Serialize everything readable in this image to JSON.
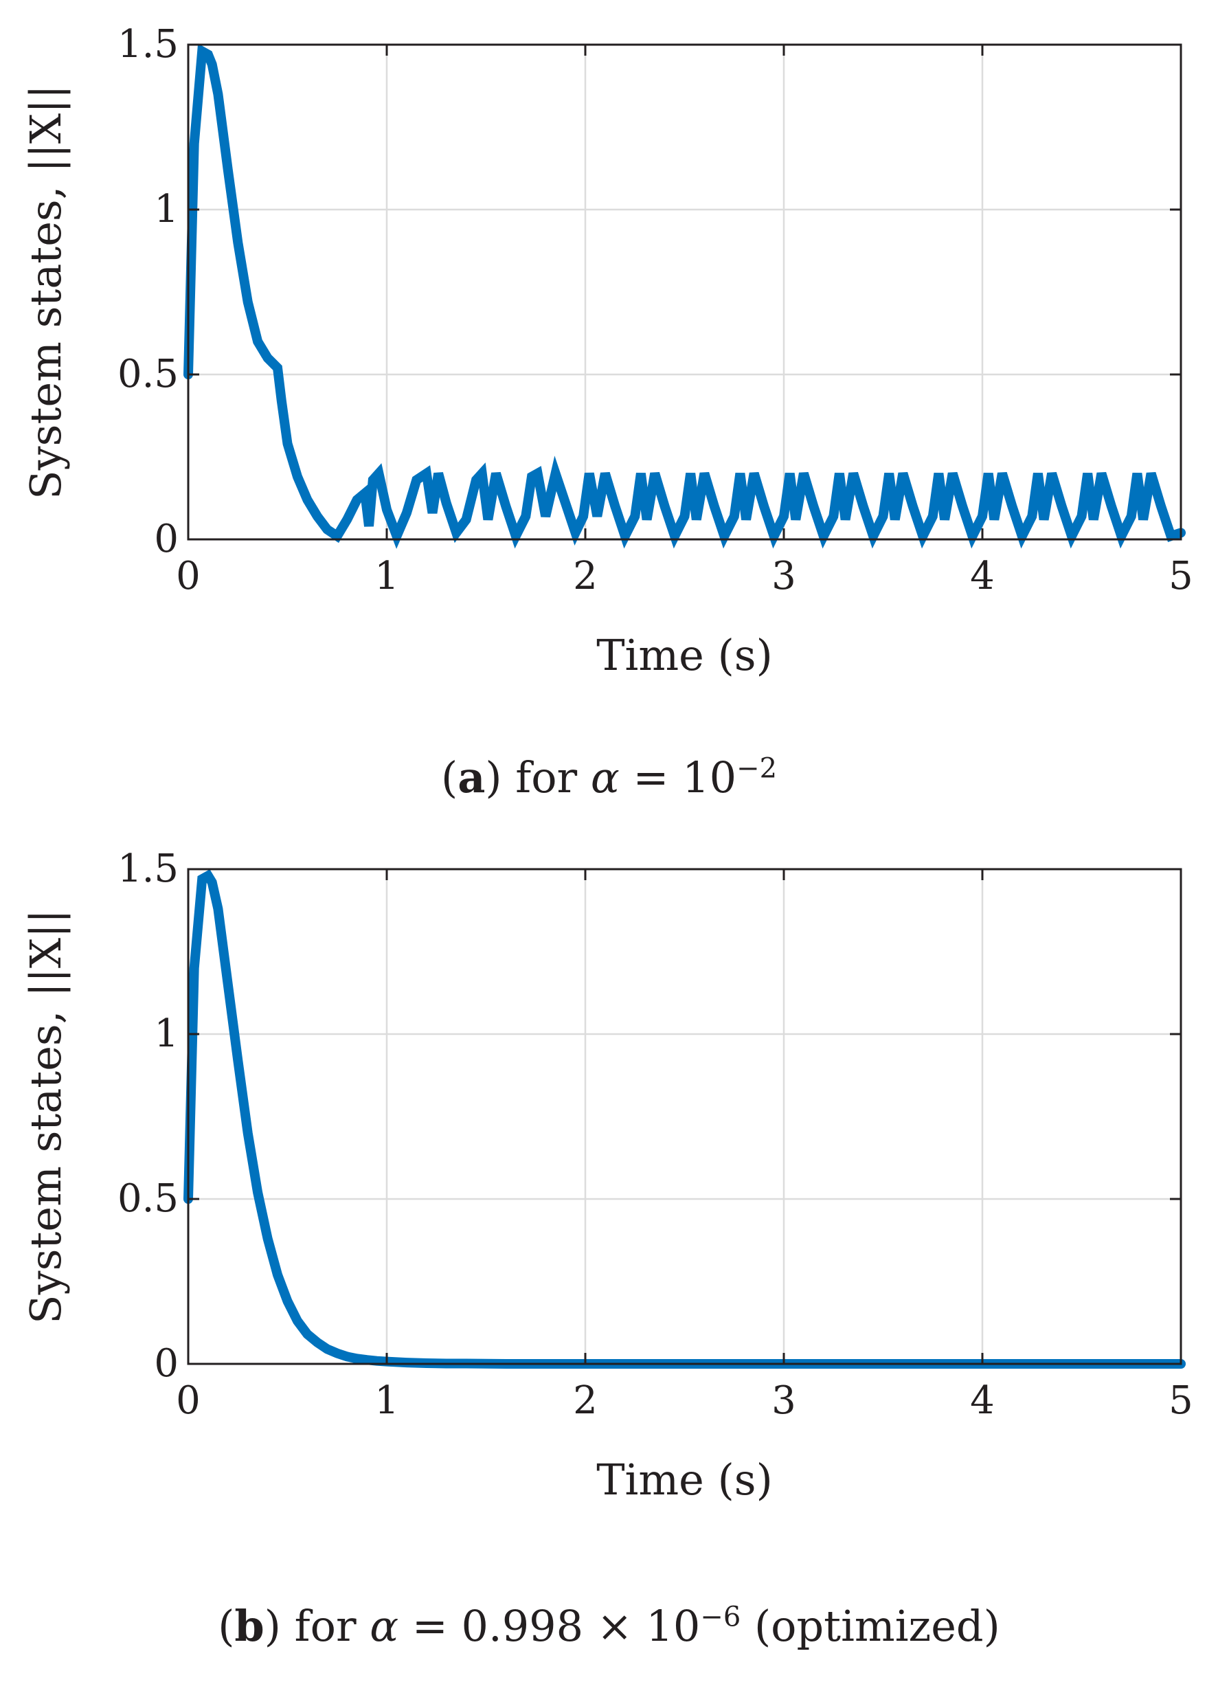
{
  "panels": [
    {
      "caption": {
        "letter": "a",
        "pre": " for ",
        "alpha_sym": "α",
        "eq": " = 10",
        "exp": "−2",
        "post": ""
      },
      "chart": {
        "type": "line",
        "xlabel": "Time (s)",
        "ylabel": "System states, ||X||",
        "xlim": [
          0,
          5
        ],
        "ylim": [
          0,
          1.5
        ],
        "xticks": [
          "0",
          "1",
          "2",
          "3",
          "4",
          "5"
        ],
        "yticks": [
          "0",
          "0.5",
          "1",
          "1.5"
        ],
        "grid": true,
        "line_color": "#0072bd",
        "series": [
          {
            "x": [
              0,
              0.03,
              0.07,
              0.1,
              0.12,
              0.15,
              0.2,
              0.25,
              0.3,
              0.35,
              0.4,
              0.45,
              0.47,
              0.5,
              0.55,
              0.6,
              0.65,
              0.7,
              0.75,
              0.8,
              0.85,
              0.89,
              0.91,
              0.93,
              0.96,
              1.0,
              1.05,
              1.1,
              1.15,
              1.2,
              1.23,
              1.26,
              1.3,
              1.35,
              1.4,
              1.45,
              1.48,
              1.51,
              1.55,
              1.6,
              1.65,
              1.7,
              1.73,
              1.76,
              1.8,
              1.85,
              1.9,
              1.95,
              1.99,
              2.02,
              2.06,
              2.1,
              2.15,
              2.2,
              2.25,
              2.28,
              2.31,
              2.35,
              2.4,
              2.45,
              2.5,
              2.53,
              2.56,
              2.6,
              2.65,
              2.7,
              2.75,
              2.78,
              2.81,
              2.85,
              2.9,
              2.95,
              3.0,
              3.03,
              3.06,
              3.1,
              3.15,
              3.2,
              3.25,
              3.28,
              3.31,
              3.35,
              3.4,
              3.45,
              3.5,
              3.53,
              3.56,
              3.6,
              3.65,
              3.7,
              3.75,
              3.78,
              3.81,
              3.85,
              3.9,
              3.95,
              4.0,
              4.03,
              4.06,
              4.1,
              4.15,
              4.2,
              4.25,
              4.28,
              4.31,
              4.35,
              4.4,
              4.45,
              4.5,
              4.53,
              4.56,
              4.6,
              4.65,
              4.7,
              4.75,
              4.78,
              4.81,
              4.85,
              4.9,
              4.95,
              5.0
            ],
            "y": [
              0.5,
              1.2,
              1.48,
              1.47,
              1.44,
              1.35,
              1.12,
              0.9,
              0.72,
              0.6,
              0.55,
              0.52,
              0.42,
              0.29,
              0.19,
              0.12,
              0.07,
              0.03,
              0.01,
              0.06,
              0.12,
              0.14,
              0.04,
              0.18,
              0.2,
              0.09,
              0.01,
              0.08,
              0.18,
              0.2,
              0.08,
              0.2,
              0.11,
              0.02,
              0.06,
              0.18,
              0.2,
              0.06,
              0.2,
              0.1,
              0.01,
              0.07,
              0.19,
              0.2,
              0.07,
              0.2,
              0.11,
              0.02,
              0.07,
              0.2,
              0.07,
              0.2,
              0.1,
              0.01,
              0.07,
              0.2,
              0.06,
              0.2,
              0.1,
              0.01,
              0.07,
              0.2,
              0.06,
              0.2,
              0.1,
              0.01,
              0.07,
              0.2,
              0.06,
              0.2,
              0.1,
              0.01,
              0.07,
              0.2,
              0.06,
              0.2,
              0.1,
              0.01,
              0.07,
              0.2,
              0.06,
              0.2,
              0.1,
              0.01,
              0.07,
              0.2,
              0.06,
              0.2,
              0.1,
              0.01,
              0.07,
              0.2,
              0.06,
              0.2,
              0.1,
              0.01,
              0.07,
              0.2,
              0.06,
              0.2,
              0.1,
              0.01,
              0.07,
              0.2,
              0.06,
              0.2,
              0.1,
              0.01,
              0.07,
              0.2,
              0.06,
              0.2,
              0.1,
              0.01,
              0.07,
              0.2,
              0.06,
              0.2,
              0.1,
              0.01,
              0.02
            ]
          }
        ]
      }
    },
    {
      "caption": {
        "letter": "b",
        "pre": " for ",
        "alpha_sym": "α",
        "eq": " = 0.998 × 10",
        "exp": "−6",
        "post": "  (optimized)"
      },
      "chart": {
        "type": "line",
        "xlabel": "Time (s)",
        "ylabel": "System states, ||X||",
        "xlim": [
          0,
          5
        ],
        "ylim": [
          0,
          1.5
        ],
        "xticks": [
          "0",
          "1",
          "2",
          "3",
          "4",
          "5"
        ],
        "yticks": [
          "0",
          "0.5",
          "1",
          "1.5"
        ],
        "grid": true,
        "line_color": "#0072bd",
        "series": [
          {
            "x": [
              0,
              0.03,
              0.07,
              0.1,
              0.12,
              0.15,
              0.2,
              0.25,
              0.3,
              0.35,
              0.4,
              0.45,
              0.5,
              0.55,
              0.6,
              0.65,
              0.7,
              0.75,
              0.8,
              0.85,
              0.9,
              0.95,
              1.0,
              1.1,
              1.2,
              1.3,
              1.4,
              1.6,
              1.8,
              2.0,
              2.5,
              3.0,
              3.5,
              4.0,
              4.5,
              5.0
            ],
            "y": [
              0.5,
              1.2,
              1.47,
              1.48,
              1.46,
              1.38,
              1.15,
              0.92,
              0.7,
              0.52,
              0.38,
              0.27,
              0.19,
              0.13,
              0.09,
              0.065,
              0.045,
              0.032,
              0.022,
              0.016,
              0.012,
              0.009,
              0.007,
              0.004,
              0.002,
              0.001,
              0.001,
              0.0,
              0.0,
              0.0,
              0.0,
              0.0,
              0.0,
              0.0,
              0.0,
              0.0
            ]
          }
        ]
      }
    }
  ],
  "chart_data": [
    {
      "type": "line",
      "xlabel": "Time (s)",
      "ylabel": "System states, ||X||",
      "xlim": [
        0,
        5
      ],
      "ylim": [
        0,
        1.5
      ],
      "grid": true
    },
    {
      "type": "line",
      "xlabel": "Time (s)",
      "ylabel": "System states, ||X||",
      "xlim": [
        0,
        5
      ],
      "ylim": [
        0,
        1.5
      ],
      "grid": true
    }
  ]
}
